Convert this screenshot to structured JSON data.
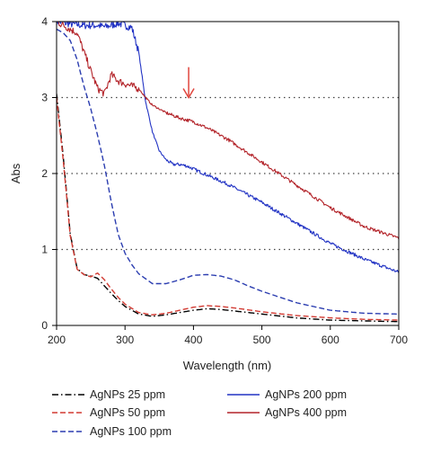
{
  "chart_data": {
    "type": "line",
    "title": "",
    "xlabel": "Wavelength (nm)",
    "ylabel": "Abs",
    "xlim": [
      200,
      700
    ],
    "ylim": [
      0,
      4
    ],
    "xticks": [
      200,
      300,
      400,
      500,
      600,
      700
    ],
    "yticks": [
      0,
      1,
      2,
      3,
      4
    ],
    "reference_lines_y": [
      1,
      2,
      3
    ],
    "arrow": {
      "x": 393,
      "y_from": 3.4,
      "y_to": 3.0,
      "color": "#e0453d"
    },
    "legend_position": "bottom",
    "series": [
      {
        "name": "AgNPs 25 ppm",
        "color": "#000000",
        "dash": "7 3 1.5 3",
        "x": [
          200,
          210,
          220,
          230,
          240,
          250,
          260,
          270,
          280,
          290,
          300,
          320,
          340,
          360,
          380,
          400,
          420,
          440,
          460,
          500,
          550,
          600,
          650,
          700
        ],
        "y": [
          3.05,
          2.2,
          1.2,
          0.75,
          0.67,
          0.65,
          0.62,
          0.52,
          0.42,
          0.33,
          0.25,
          0.15,
          0.12,
          0.14,
          0.17,
          0.2,
          0.22,
          0.21,
          0.19,
          0.15,
          0.1,
          0.07,
          0.06,
          0.05
        ]
      },
      {
        "name": "AgNPs 50 ppm",
        "color": "#d23a32",
        "dash": "6 3",
        "x": [
          200,
          210,
          220,
          230,
          240,
          250,
          260,
          270,
          280,
          290,
          300,
          320,
          340,
          360,
          380,
          400,
          420,
          440,
          460,
          500,
          550,
          600,
          650,
          700
        ],
        "y": [
          3.0,
          2.15,
          1.18,
          0.74,
          0.67,
          0.64,
          0.69,
          0.6,
          0.48,
          0.37,
          0.28,
          0.17,
          0.14,
          0.16,
          0.2,
          0.24,
          0.26,
          0.25,
          0.23,
          0.18,
          0.13,
          0.1,
          0.08,
          0.07
        ]
      },
      {
        "name": "AgNPs 100 ppm",
        "color": "#2b3db0",
        "dash": "6 3",
        "x": [
          200,
          210,
          220,
          230,
          240,
          250,
          260,
          270,
          280,
          290,
          300,
          310,
          320,
          340,
          360,
          380,
          400,
          420,
          440,
          460,
          480,
          500,
          550,
          600,
          650,
          700
        ],
        "y": [
          3.9,
          3.85,
          3.75,
          3.5,
          3.15,
          2.85,
          2.5,
          2.1,
          1.62,
          1.2,
          0.95,
          0.8,
          0.68,
          0.55,
          0.55,
          0.6,
          0.66,
          0.67,
          0.65,
          0.6,
          0.52,
          0.45,
          0.3,
          0.2,
          0.16,
          0.15
        ]
      },
      {
        "name": "AgNPs 200 ppm",
        "color": "#2233c4",
        "dash": "",
        "x": [
          200,
          220,
          240,
          260,
          270,
          280,
          290,
          300,
          310,
          320,
          330,
          340,
          350,
          360,
          370,
          380,
          390,
          400,
          420,
          450,
          500,
          550,
          600,
          650,
          700
        ],
        "y": [
          4.0,
          3.97,
          3.95,
          3.95,
          3.93,
          3.95,
          3.98,
          3.95,
          3.92,
          3.6,
          2.95,
          2.55,
          2.3,
          2.18,
          2.12,
          2.12,
          2.1,
          2.06,
          1.98,
          1.86,
          1.62,
          1.35,
          1.08,
          0.87,
          0.7
        ]
      },
      {
        "name": "AgNPs 400 ppm",
        "color": "#b3242a",
        "dash": "",
        "x": [
          200,
          210,
          220,
          230,
          240,
          250,
          260,
          270,
          280,
          290,
          300,
          310,
          320,
          330,
          340,
          350,
          360,
          380,
          400,
          420,
          450,
          500,
          550,
          600,
          650,
          700
        ],
        "y": [
          4.0,
          3.95,
          3.9,
          3.85,
          3.6,
          3.35,
          3.12,
          3.05,
          3.3,
          3.22,
          3.18,
          3.15,
          3.12,
          3.0,
          2.9,
          2.85,
          2.8,
          2.73,
          2.68,
          2.6,
          2.45,
          2.15,
          1.85,
          1.55,
          1.3,
          1.15
        ]
      }
    ]
  }
}
